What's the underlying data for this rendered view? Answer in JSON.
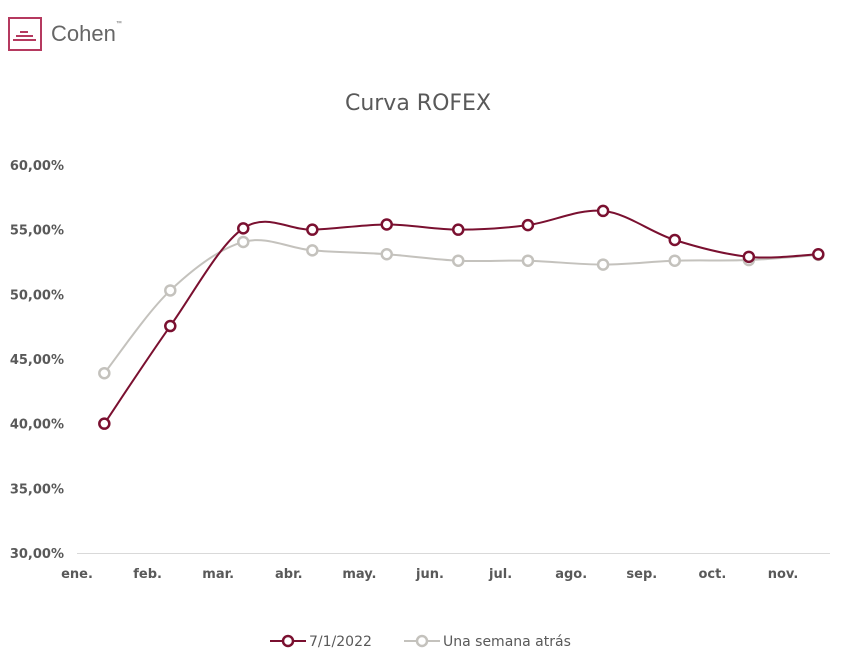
{
  "brand": {
    "name": "Cohen",
    "tm": "™",
    "color": "#b5395f"
  },
  "chart_data": {
    "type": "line",
    "title": "Curva ROFEX",
    "xlabel": "",
    "ylabel": "",
    "ylim": [
      30,
      60
    ],
    "yticks": [
      "30,00%",
      "35,00%",
      "40,00%",
      "45,00%",
      "50,00%",
      "55,00%",
      "60,00%"
    ],
    "xticks": [
      "ene.",
      "feb.",
      "mar.",
      "abr.",
      "may.",
      "jun.",
      "jul.",
      "ago.",
      "sep.",
      "oct.",
      "nov."
    ],
    "x": [
      "2022-01-13",
      "2022-02-10",
      "2022-03-12",
      "2022-04-11",
      "2022-05-13",
      "2022-06-13",
      "2022-07-13",
      "2022-08-15",
      "2022-09-15",
      "2022-10-17",
      "2022-11-16"
    ],
    "series": [
      {
        "name": "7/1/2022",
        "color": "#7a1030",
        "values": [
          40.0,
          47.55,
          55.1,
          55.0,
          55.4,
          55.0,
          55.35,
          56.45,
          54.2,
          52.9,
          53.1
        ]
      },
      {
        "name": "Una semana atrás",
        "color": "#c4c2bd",
        "values": [
          43.9,
          50.3,
          54.05,
          53.4,
          53.1,
          52.6,
          52.6,
          52.3,
          52.6,
          52.65,
          53.05
        ]
      }
    ],
    "grid": false,
    "legend": "bottom"
  }
}
